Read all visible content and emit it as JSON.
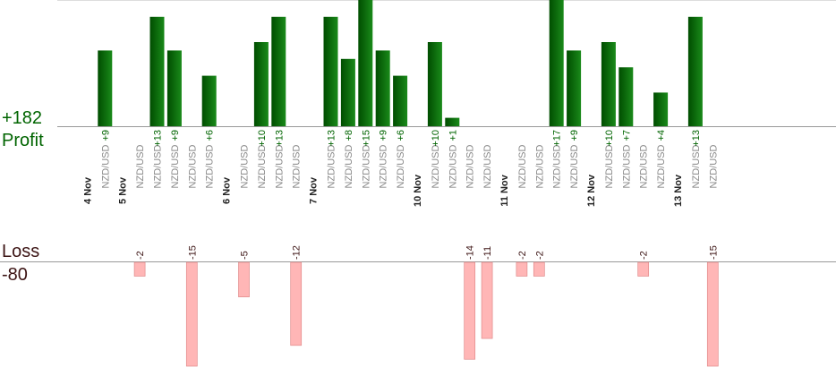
{
  "colors": {
    "profit_text": "#006400",
    "loss_text": "#3c1414",
    "profit_bar_dark": "#004d00",
    "profit_bar_light": "#1a8a1a",
    "loss_bar_fill": "#ffb6b6",
    "loss_bar_stroke": "#e08a8a",
    "axis": "#999999",
    "pair_label": "#888888",
    "date_label": "#222222"
  },
  "summary": {
    "profit_total": "+182",
    "profit_label": "Profit",
    "loss_label": "Loss",
    "loss_total": "-80"
  },
  "chart_data": {
    "type": "bar",
    "pair": "NZD/USD",
    "dates": [
      "4 Nov",
      "5 Nov",
      "6 Nov",
      "7 Nov",
      "10 Nov",
      "11 Nov",
      "12 Nov",
      "13 Nov"
    ],
    "trades": [
      {
        "date": "4 Nov",
        "pair": "NZD/USD",
        "pips": 9
      },
      {
        "date": "5 Nov",
        "pair": "NZD/USD",
        "pips": -2
      },
      {
        "date": "5 Nov",
        "pair": "NZD/USD",
        "pips": 13
      },
      {
        "date": "5 Nov",
        "pair": "NZD/USD",
        "pips": 9
      },
      {
        "date": "5 Nov",
        "pair": "NZD/USD",
        "pips": -15
      },
      {
        "date": "5 Nov",
        "pair": "NZD/USD",
        "pips": 6
      },
      {
        "date": "6 Nov",
        "pair": "NZD/USD",
        "pips": -5
      },
      {
        "date": "6 Nov",
        "pair": "NZD/USD",
        "pips": 10
      },
      {
        "date": "6 Nov",
        "pair": "NZD/USD",
        "pips": 13
      },
      {
        "date": "6 Nov",
        "pair": "NZD/USD",
        "pips": -12
      },
      {
        "date": "7 Nov",
        "pair": "NZD/USD",
        "pips": 13
      },
      {
        "date": "7 Nov",
        "pair": "NZD/USD",
        "pips": 8
      },
      {
        "date": "7 Nov",
        "pair": "NZD/USD",
        "pips": 15
      },
      {
        "date": "7 Nov",
        "pair": "NZD/USD",
        "pips": 9
      },
      {
        "date": "7 Nov",
        "pair": "NZD/USD",
        "pips": 6
      },
      {
        "date": "10 Nov",
        "pair": "NZD/USD",
        "pips": 10
      },
      {
        "date": "10 Nov",
        "pair": "NZD/USD",
        "pips": 1
      },
      {
        "date": "10 Nov",
        "pair": "NZD/USD",
        "pips": -14
      },
      {
        "date": "10 Nov",
        "pair": "NZD/USD",
        "pips": -11
      },
      {
        "date": "11 Nov",
        "pair": "NZD/USD",
        "pips": -2
      },
      {
        "date": "11 Nov",
        "pair": "NZD/USD",
        "pips": -2
      },
      {
        "date": "11 Nov",
        "pair": "NZD/USD",
        "pips": 17
      },
      {
        "date": "11 Nov",
        "pair": "NZD/USD",
        "pips": 9
      },
      {
        "date": "12 Nov",
        "pair": "NZD/USD",
        "pips": 10
      },
      {
        "date": "12 Nov",
        "pair": "NZD/USD",
        "pips": 7
      },
      {
        "date": "12 Nov",
        "pair": "NZD/USD",
        "pips": -2
      },
      {
        "date": "12 Nov",
        "pair": "NZD/USD",
        "pips": 4
      },
      {
        "date": "13 Nov",
        "pair": "NZD/USD",
        "pips": 13
      },
      {
        "date": "13 Nov",
        "pair": "NZD/USD",
        "pips": -15
      }
    ],
    "profit_axis_max": 15,
    "loss_axis_max": 15,
    "grid": false,
    "legend": "none"
  }
}
